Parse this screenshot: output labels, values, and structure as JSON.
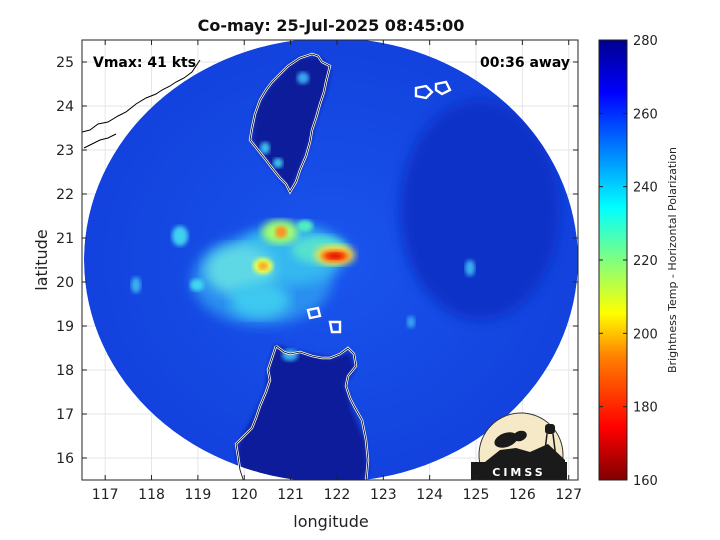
{
  "figure": {
    "title": "Co-may: 25-Jul-2025 08:45:00",
    "vmax_label": "Vmax: 41 kts",
    "time_label": "00:36 away",
    "logo_text": "CIMSS"
  },
  "axes": {
    "xlabel": "longitude",
    "ylabel": "latitude",
    "xlim": [
      116.5,
      127.2
    ],
    "ylim": [
      15.5,
      25.5
    ],
    "xticks": [
      "117",
      "118",
      "119",
      "120",
      "121",
      "122",
      "123",
      "124",
      "125",
      "126",
      "127"
    ],
    "yticks": [
      "16",
      "17",
      "18",
      "19",
      "20",
      "21",
      "22",
      "23",
      "24",
      "25"
    ],
    "grid": true
  },
  "colorbar": {
    "label": "Brightness Temp - Horizontal Polarization",
    "min": 160,
    "max": 280,
    "ticks": [
      "280",
      "260",
      "240",
      "220",
      "200",
      "180",
      "160"
    ],
    "colors": [
      "#7f0000",
      "#ff0000",
      "#ff8000",
      "#ffff00",
      "#80ff80",
      "#00ffff",
      "#0080ff",
      "#0000ff",
      "#00008f"
    ]
  },
  "map": {
    "scan_center": {
      "lon": 121.8,
      "lat": 20.5
    },
    "features": [
      {
        "name": "intense-convection",
        "lon": 122.0,
        "lat": 20.6,
        "temp": 195
      },
      {
        "name": "convection",
        "lon": 120.8,
        "lat": 21.05,
        "temp": 205
      },
      {
        "name": "convection",
        "lon": 120.5,
        "lat": 20.4,
        "temp": 215
      },
      {
        "name": "convection",
        "lon": 121.4,
        "lat": 20.8,
        "temp": 225
      },
      {
        "name": "cloud-band",
        "lon": 120.6,
        "lat": 20.3,
        "temp": 240
      }
    ]
  }
}
